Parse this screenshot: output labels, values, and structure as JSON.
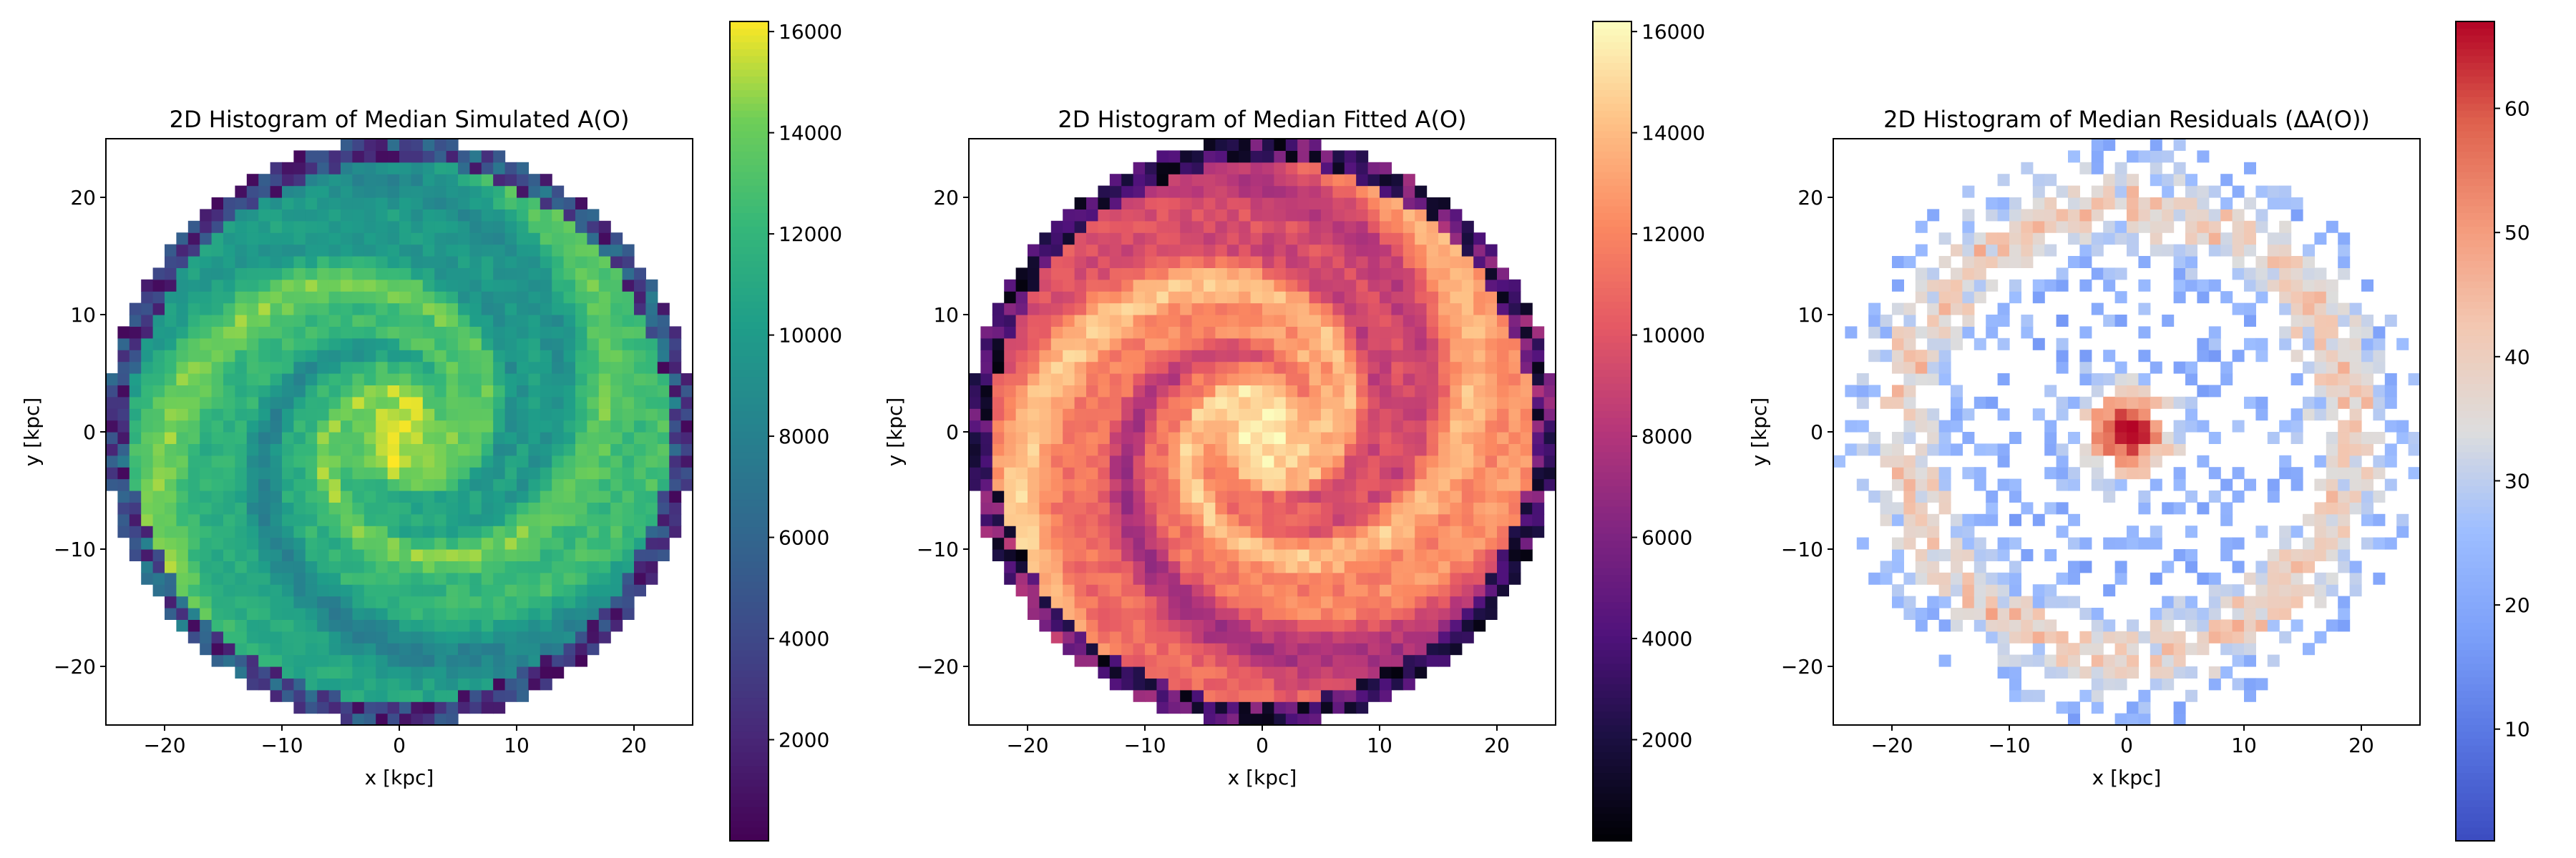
{
  "chart_data": [
    {
      "type": "heatmap",
      "title": "2D Histogram of Median Simulated A(O)",
      "xlabel": "x [kpc]",
      "ylabel": "y [kpc]",
      "xlim": [
        -25,
        25
      ],
      "ylim": [
        -25,
        25
      ],
      "xticks": [
        -20,
        -10,
        0,
        10,
        20
      ],
      "yticks": [
        -20,
        -10,
        0,
        10,
        20
      ],
      "xtick_labels": [
        "−20",
        "−10",
        "0",
        "10",
        "20"
      ],
      "ytick_labels": [
        "−20",
        "−10",
        "0",
        "10",
        "20"
      ],
      "grid_bins": 50,
      "disk_radius": 25,
      "pattern": "spiral",
      "central_value": 15800,
      "arm_value": 13500,
      "interarm_value": 9500,
      "edge_value": 300,
      "colormap": "viridis",
      "colorbar": {
        "range": [
          0,
          16200
        ],
        "ticks": [
          2000,
          4000,
          6000,
          8000,
          10000,
          12000,
          14000,
          16000
        ],
        "tick_labels": [
          "2000",
          "4000",
          "6000",
          "8000",
          "10000",
          "12000",
          "14000",
          "16000"
        ]
      }
    },
    {
      "type": "heatmap",
      "title": "2D Histogram of Median Fitted A(O)",
      "xlabel": "x [kpc]",
      "ylabel": "y [kpc]",
      "xlim": [
        -25,
        25
      ],
      "ylim": [
        -25,
        25
      ],
      "xticks": [
        -20,
        -10,
        0,
        10,
        20
      ],
      "yticks": [
        -20,
        -10,
        0,
        10,
        20
      ],
      "xtick_labels": [
        "−20",
        "−10",
        "0",
        "10",
        "20"
      ],
      "ytick_labels": [
        "−20",
        "−10",
        "0",
        "10",
        "20"
      ],
      "grid_bins": 50,
      "disk_radius": 25,
      "pattern": "spiral",
      "central_value": 15800,
      "arm_value": 13500,
      "interarm_value": 9000,
      "edge_value": 300,
      "colormap": "magma",
      "colorbar": {
        "range": [
          0,
          16200
        ],
        "ticks": [
          2000,
          4000,
          6000,
          8000,
          10000,
          12000,
          14000,
          16000
        ],
        "tick_labels": [
          "2000",
          "4000",
          "6000",
          "8000",
          "10000",
          "12000",
          "14000",
          "16000"
        ]
      }
    },
    {
      "type": "heatmap",
      "title": "2D Histogram of Median Residuals (ΔA(O))",
      "xlabel": "x [kpc]",
      "ylabel": "y [kpc]",
      "xlim": [
        -25,
        25
      ],
      "ylim": [
        -25,
        25
      ],
      "xticks": [
        -20,
        -10,
        0,
        10,
        20
      ],
      "yticks": [
        -20,
        -10,
        0,
        10,
        20
      ],
      "xtick_labels": [
        "−20",
        "−10",
        "0",
        "10",
        "20"
      ],
      "ytick_labels": [
        "−20",
        "−10",
        "0",
        "10",
        "20"
      ],
      "grid_bins": 50,
      "disk_radius": 25,
      "pattern": "residual-rings",
      "central_value": 66,
      "ring_value": 42,
      "background_value": 22,
      "colormap": "coolwarm",
      "colorbar": {
        "range": [
          1,
          67
        ],
        "ticks": [
          10,
          20,
          30,
          40,
          50,
          60
        ],
        "tick_labels": [
          "10",
          "20",
          "30",
          "40",
          "50",
          "60"
        ]
      }
    }
  ]
}
